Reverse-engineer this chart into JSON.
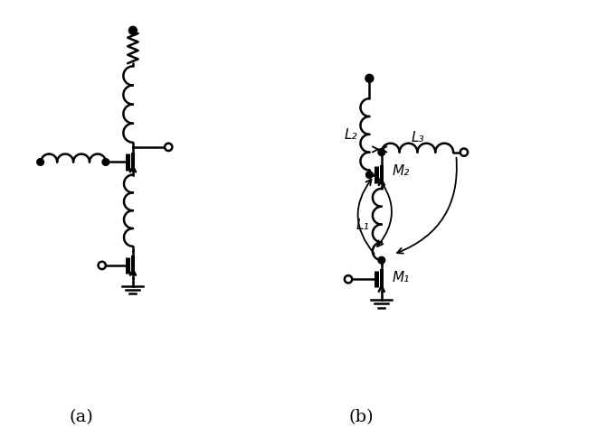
{
  "fig_width": 6.71,
  "fig_height": 4.85,
  "dpi": 100,
  "background_color": "#ffffff",
  "line_color": "#000000",
  "line_width": 1.8,
  "label_a": "(a)",
  "label_b": "(b)",
  "label_L2": "L₂",
  "label_L3": "L₃",
  "label_L1": "L₁",
  "label_M2": "M₂",
  "label_M1": "M₁"
}
